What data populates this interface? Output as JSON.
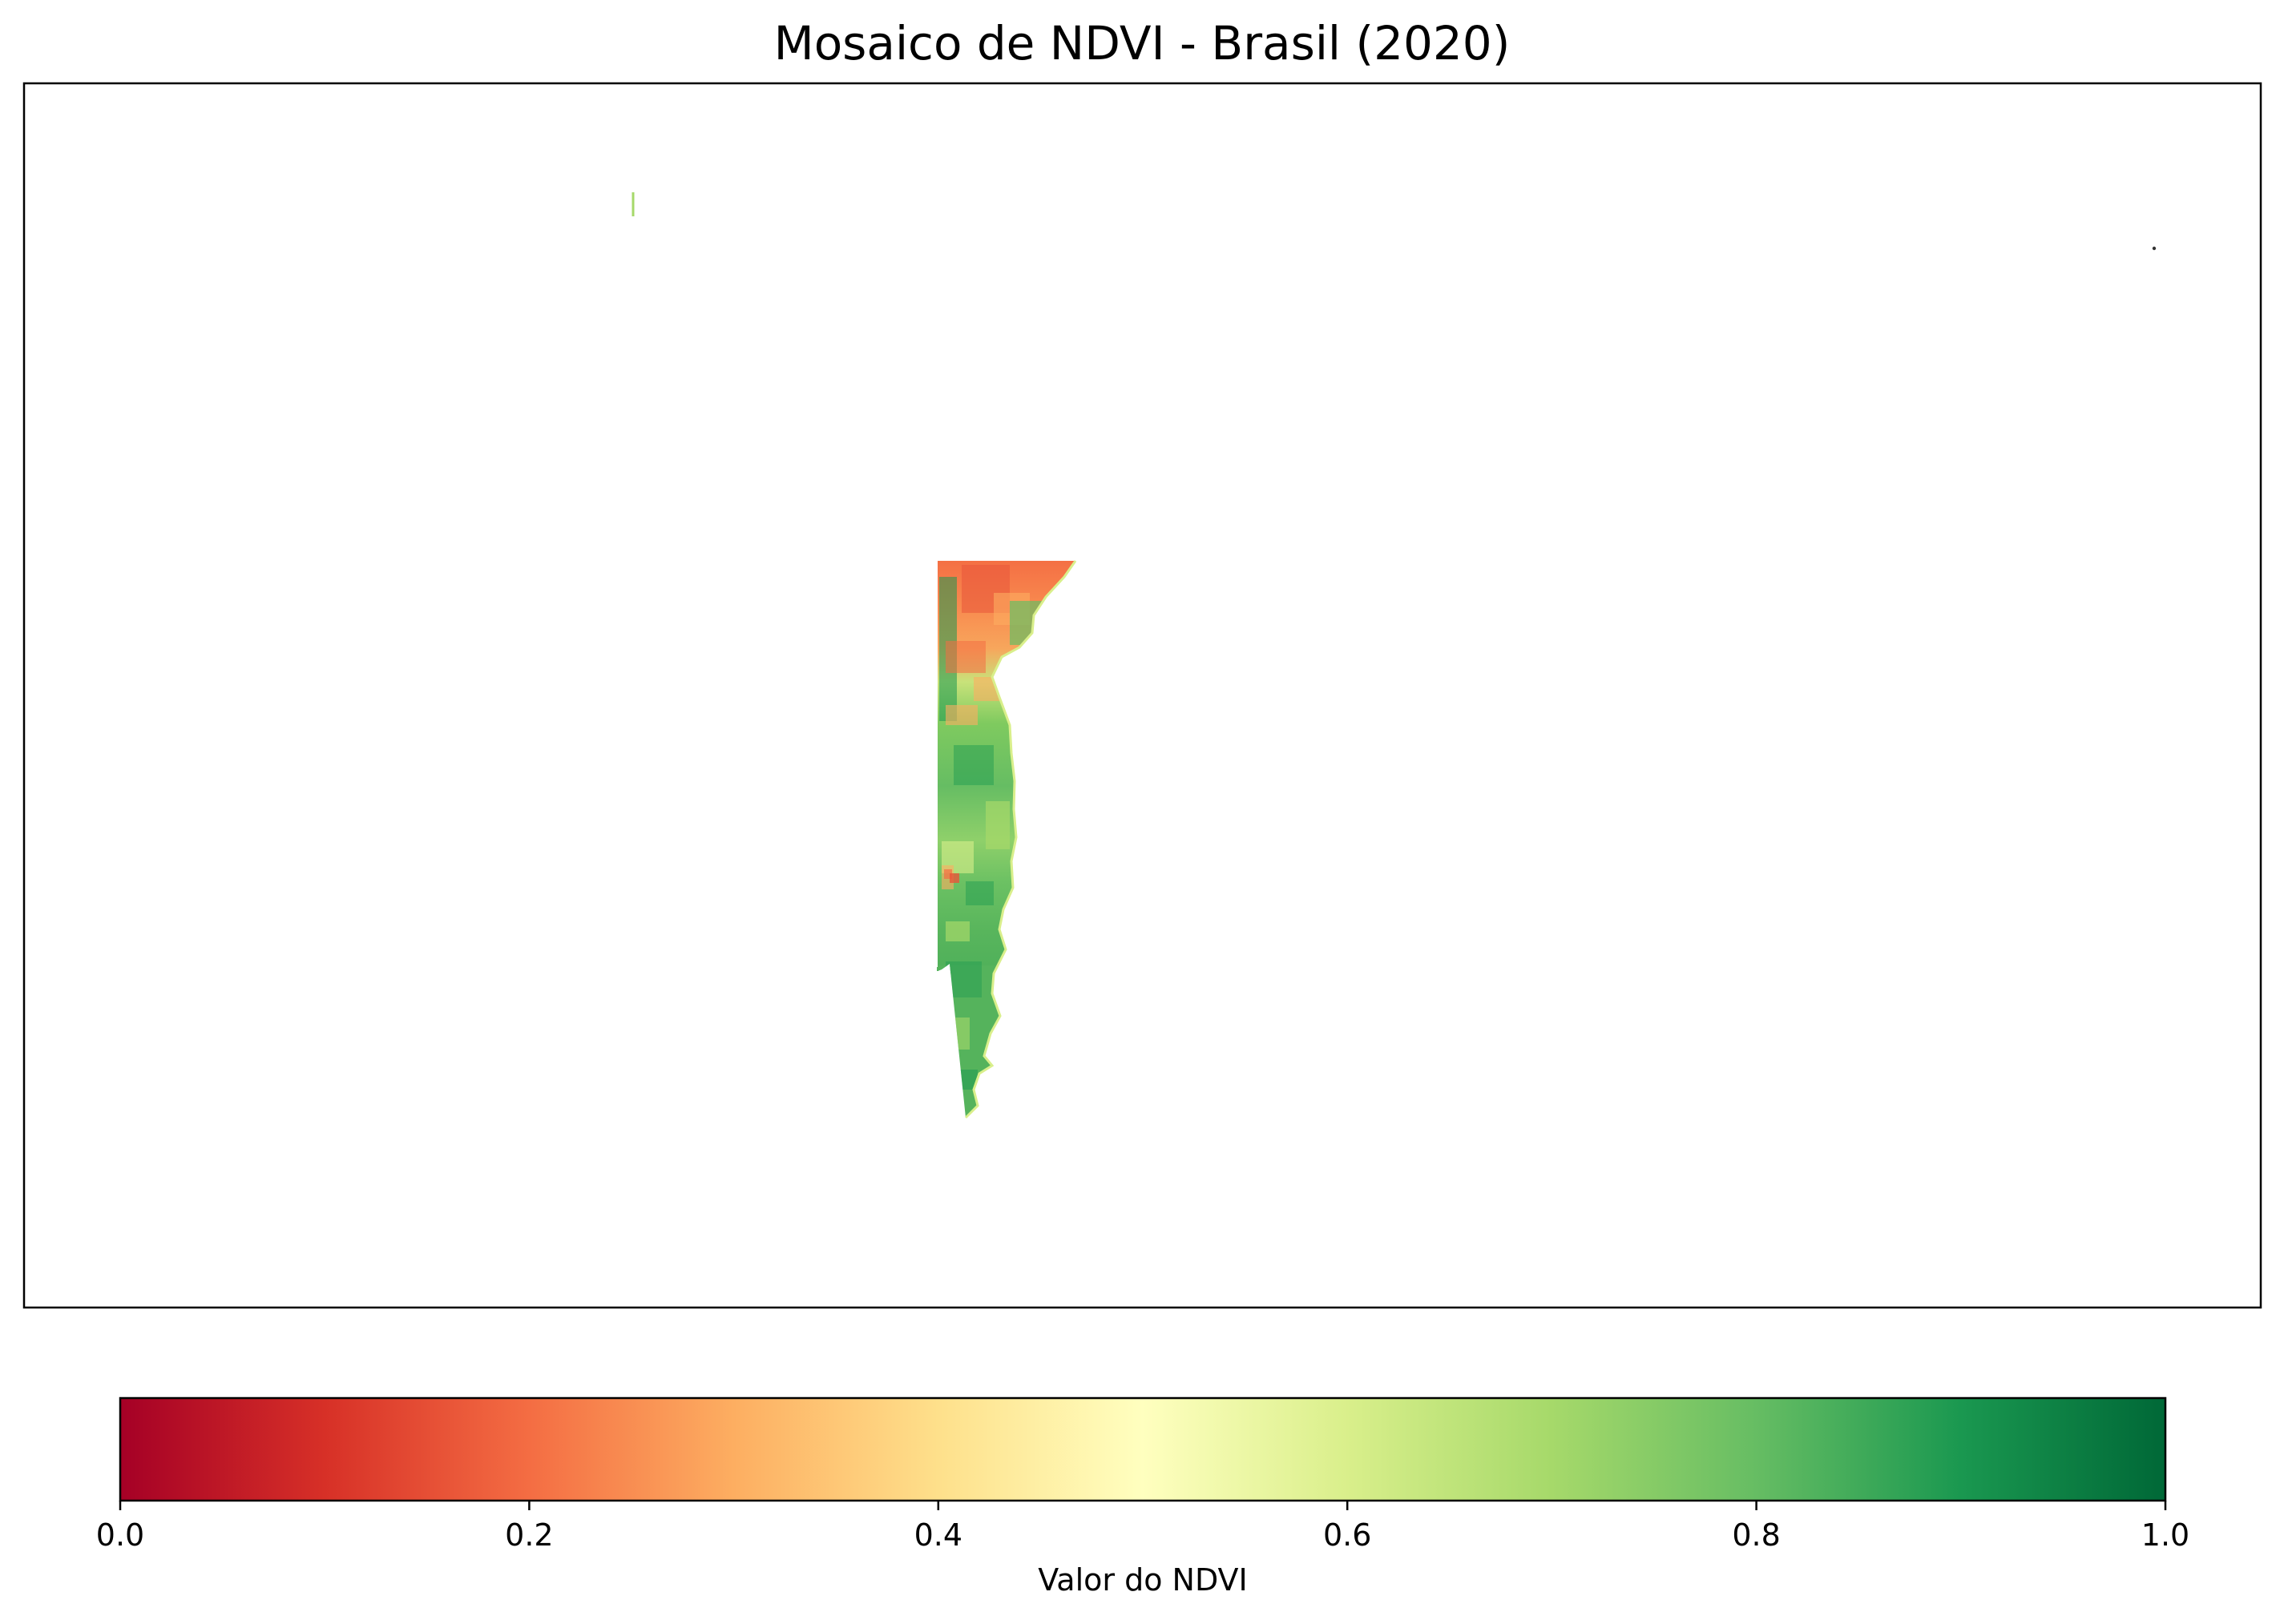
{
  "title": "Mosaico de NDVI - Brasil (2020)",
  "colorbar": {
    "label": "Valor do NDVI",
    "colormap": "RdYlGn",
    "range": [
      0.0,
      1.0
    ],
    "ticks": [
      "0.0",
      "0.2",
      "0.4",
      "0.6",
      "0.8",
      "1.0"
    ],
    "orientation": "horizontal",
    "stops": [
      {
        "value": 0.0,
        "color": "#a50026"
      },
      {
        "value": 0.1,
        "color": "#d73027"
      },
      {
        "value": 0.2,
        "color": "#f46d43"
      },
      {
        "value": 0.3,
        "color": "#fdae61"
      },
      {
        "value": 0.4,
        "color": "#fee08b"
      },
      {
        "value": 0.5,
        "color": "#ffffbf"
      },
      {
        "value": 0.6,
        "color": "#d9ef8b"
      },
      {
        "value": 0.7,
        "color": "#a6d96a"
      },
      {
        "value": 0.8,
        "color": "#66bd63"
      },
      {
        "value": 0.9,
        "color": "#1a9850"
      },
      {
        "value": 1.0,
        "color": "#006837"
      }
    ]
  },
  "map": {
    "axes_frame": true,
    "show_ticks": false,
    "background": "#ffffff",
    "raster_region": "coastal strip",
    "dominant_ndvi_north": "low (orange/red)",
    "dominant_ndvi_south": "high (green)"
  }
}
